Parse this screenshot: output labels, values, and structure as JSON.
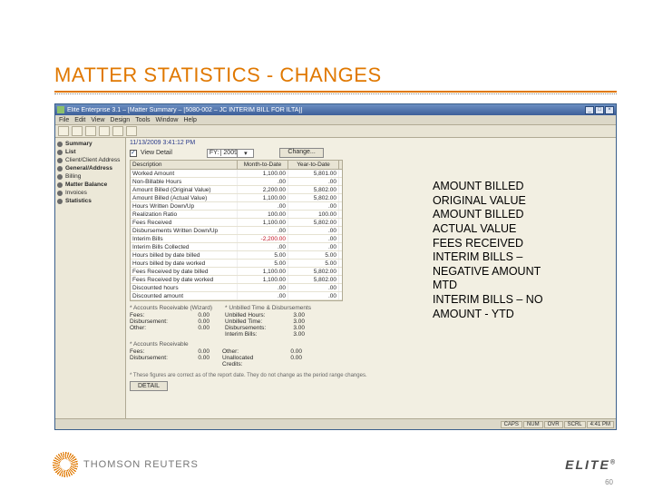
{
  "slide": {
    "title": "MATTER STATISTICS - CHANGES",
    "number": "60"
  },
  "window": {
    "title": "Elite Enterprise 3.1 – [Matter Summary – [5080-002 – JC INTERIM BILL FOR ILTA]]",
    "menus": [
      "File",
      "Edit",
      "View",
      "Design",
      "Tools",
      "Window",
      "Help"
    ]
  },
  "sidebar": {
    "header": "Summary",
    "items": [
      {
        "label": "List",
        "bold": true
      },
      {
        "label": "Client/Client Address"
      },
      {
        "label": "General/Address",
        "bold": true
      },
      {
        "label": "Billing"
      },
      {
        "label": "Matter Balance",
        "bold": true
      },
      {
        "label": "Invoices"
      },
      {
        "label": "Statistics",
        "bold": true
      }
    ]
  },
  "main": {
    "datetime": "11/13/2009 3:41:12 PM",
    "viewDetail": "View Detail",
    "yearLabel": "FY:",
    "yearValue": "2009",
    "changeBtn": "Change...",
    "columns": {
      "desc": "Description",
      "mtd": "Month-to-Date",
      "ytd": "Year-to-Date"
    },
    "rows": [
      {
        "desc": "Worked Amount",
        "mtd": "1,100.00",
        "ytd": "5,801.00"
      },
      {
        "desc": "Non-Billable Hours",
        "mtd": ".00",
        "ytd": ".00"
      },
      {
        "desc": "Amount Billed (Original Value)",
        "mtd": "2,200.00",
        "ytd": "5,802.00"
      },
      {
        "desc": "Amount Billed (Actual Value)",
        "mtd": "1,100.00",
        "ytd": "5,802.00"
      },
      {
        "desc": "Hours Written Down/Up",
        "mtd": ".00",
        "ytd": ".00"
      },
      {
        "desc": "Realization Ratio",
        "mtd": "100.00",
        "ytd": "100.00"
      },
      {
        "desc": "Fees Received",
        "mtd": "1,100.00",
        "ytd": "5,802.00"
      },
      {
        "desc": "Disbursements Written Down/Up",
        "mtd": ".00",
        "ytd": ".00"
      },
      {
        "desc": "Interim Bills",
        "mtd": "-2,200.00",
        "ytd": ".00",
        "mtd_neg": true
      },
      {
        "desc": "Interim Bills Collected",
        "mtd": ".00",
        "ytd": ".00"
      },
      {
        "desc": "Hours billed by date billed",
        "mtd": "5.00",
        "ytd": "5.00"
      },
      {
        "desc": "Hours billed by date worked",
        "mtd": "5.00",
        "ytd": "5.00"
      },
      {
        "desc": "Fees Received by date billed",
        "mtd": "1,100.00",
        "ytd": "5,802.00"
      },
      {
        "desc": "Fees Received by date worked",
        "mtd": "1,100.00",
        "ytd": "5,802.00"
      },
      {
        "desc": "Discounted hours",
        "mtd": ".00",
        "ytd": ".00"
      },
      {
        "desc": "Discounted amount",
        "mtd": ".00",
        "ytd": ".00"
      }
    ],
    "arSection": "* Accounts Receivable (Wizard)",
    "unbilledSection": "* Unbilled Time & Disbursements",
    "arWizard": [
      {
        "k": "Fees:",
        "v": "0.00"
      },
      {
        "k": "Disbursement:",
        "v": "0.00"
      },
      {
        "k": "Other:",
        "v": "0.00"
      }
    ],
    "unbilled": [
      {
        "k": "Unbilled Hours:",
        "v": "3.00"
      },
      {
        "k": "Unbilled Time:",
        "v": "3.00"
      },
      {
        "k": "Disbursements:",
        "v": "3.00"
      },
      {
        "k": "Interim Bills:",
        "v": "3.00"
      }
    ],
    "arSection2": "* Accounts Receivable",
    "ar2": [
      {
        "k": "Fees:",
        "v": "0.00"
      },
      {
        "k": "Disbursement:",
        "v": "0.00"
      },
      {
        "k": "Other:",
        "v": "0.00"
      },
      {
        "k": "Unallocated Credits:",
        "v": "0.00"
      }
    ],
    "note": "* These figures are correct as of the report date. They do not change as the period range changes.",
    "detail": "DETAIL"
  },
  "status": {
    "caps": "CAPS",
    "num": "NUM",
    "ovr": "OVR",
    "scrl": "SCRL",
    "time": "4:41 PM"
  },
  "annotations": [
    "AMOUNT BILLED",
    "ORIGINAL VALUE",
    "AMOUNT BILLED",
    "ACTUAL VALUE",
    "FEES RECEIVED",
    "INTERIM BILLS –",
    "NEGATIVE AMOUNT",
    "MTD",
    "INTERIM BILLS – NO",
    "AMOUNT - YTD"
  ],
  "footer": {
    "tr": "THOMSON REUTERS",
    "elite": "ELITE"
  }
}
